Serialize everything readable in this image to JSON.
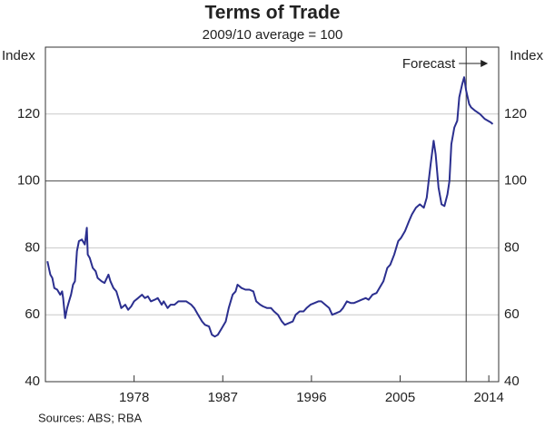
{
  "chart_data": {
    "type": "line",
    "title": "Terms of Trade",
    "subtitle": "2009/10 average = 100",
    "ylabel": "Index",
    "annotation": "Forecast",
    "forecast_start": 2011.7,
    "reference_line": 100,
    "source": "Sources: ABS; RBA",
    "xlim": [
      1969,
      2015
    ],
    "xticks": [
      1978,
      1987,
      1996,
      2005,
      2014
    ],
    "ylim": [
      40,
      140
    ],
    "yticks": [
      40,
      60,
      80,
      100,
      120
    ],
    "grid": true,
    "series": [
      {
        "name": "Terms of Trade",
        "color": "#2b2f8f",
        "x": [
          1969.2,
          1969.5,
          1969.7,
          1969.9,
          1970.2,
          1970.5,
          1970.7,
          1970.8,
          1971.0,
          1971.2,
          1971.4,
          1971.6,
          1971.8,
          1972.0,
          1972.2,
          1972.4,
          1972.7,
          1973.0,
          1973.2,
          1973.3,
          1973.5,
          1973.8,
          1974.1,
          1974.3,
          1974.7,
          1975.0,
          1975.4,
          1975.6,
          1975.9,
          1976.2,
          1976.5,
          1976.7,
          1977.1,
          1977.4,
          1977.7,
          1978.0,
          1978.4,
          1978.8,
          1979.1,
          1979.4,
          1979.7,
          1980.1,
          1980.4,
          1980.8,
          1981.0,
          1981.4,
          1981.7,
          1982.1,
          1982.5,
          1982.8,
          1983.3,
          1983.8,
          1984.1,
          1984.5,
          1984.9,
          1985.2,
          1985.6,
          1985.9,
          1986.2,
          1986.5,
          1986.9,
          1987.3,
          1987.6,
          1988.0,
          1988.3,
          1988.5,
          1988.9,
          1989.3,
          1989.7,
          1990.1,
          1990.4,
          1990.8,
          1991.1,
          1991.5,
          1991.9,
          1992.2,
          1992.6,
          1993.0,
          1993.3,
          1993.7,
          1994.1,
          1994.4,
          1994.8,
          1995.2,
          1995.5,
          1995.9,
          1996.3,
          1996.7,
          1997.0,
          1997.4,
          1997.8,
          1998.1,
          1998.5,
          1998.9,
          1999.2,
          1999.6,
          2000.0,
          2000.3,
          2000.7,
          2001.1,
          2001.5,
          2001.8,
          2002.2,
          2002.6,
          2002.9,
          2003.3,
          2003.7,
          2004.0,
          2004.4,
          2004.8,
          2005.1,
          2005.5,
          2005.9,
          2006.2,
          2006.6,
          2007.0,
          2007.4,
          2007.7,
          2008.1,
          2008.4,
          2008.6,
          2008.9,
          2009.2,
          2009.5,
          2009.8,
          2010.0,
          2010.2,
          2010.5,
          2010.8,
          2011.0,
          2011.3,
          2011.5,
          2011.7,
          2012.0,
          2012.2,
          2012.6,
          2013.1,
          2013.6,
          2014.2,
          2014.4
        ],
        "values": [
          76,
          72,
          71,
          68,
          67.5,
          66,
          67,
          65,
          59,
          62,
          64,
          66,
          69,
          70,
          79,
          82,
          82.5,
          81,
          86,
          78,
          77,
          74,
          73,
          71,
          70,
          69.5,
          72,
          70,
          68,
          67,
          64,
          62,
          63,
          61.5,
          62.5,
          64,
          65,
          66,
          65,
          65.5,
          64,
          64.5,
          65,
          63,
          64,
          62,
          63,
          63,
          64,
          64,
          64,
          63,
          62,
          60,
          58,
          57,
          56.5,
          54,
          53.5,
          54,
          56,
          58,
          62,
          66,
          67,
          69,
          68,
          67.5,
          67.5,
          67,
          64,
          63,
          62.5,
          62,
          62,
          61,
          60,
          58,
          57,
          57.5,
          58,
          60,
          61,
          61,
          62,
          63,
          63.5,
          64,
          64,
          63,
          62,
          60,
          60.5,
          61,
          62,
          64,
          63.5,
          63.5,
          64,
          64.5,
          65,
          64.5,
          66,
          66.5,
          68,
          70,
          74,
          75,
          78,
          82,
          83,
          85,
          88,
          90,
          92,
          93,
          92,
          95,
          105,
          112,
          108,
          98,
          93,
          92.5,
          96,
          100,
          111,
          116,
          118,
          125,
          129,
          131,
          127,
          123,
          122,
          121,
          120,
          118.5,
          117.5,
          117
        ]
      }
    ]
  }
}
